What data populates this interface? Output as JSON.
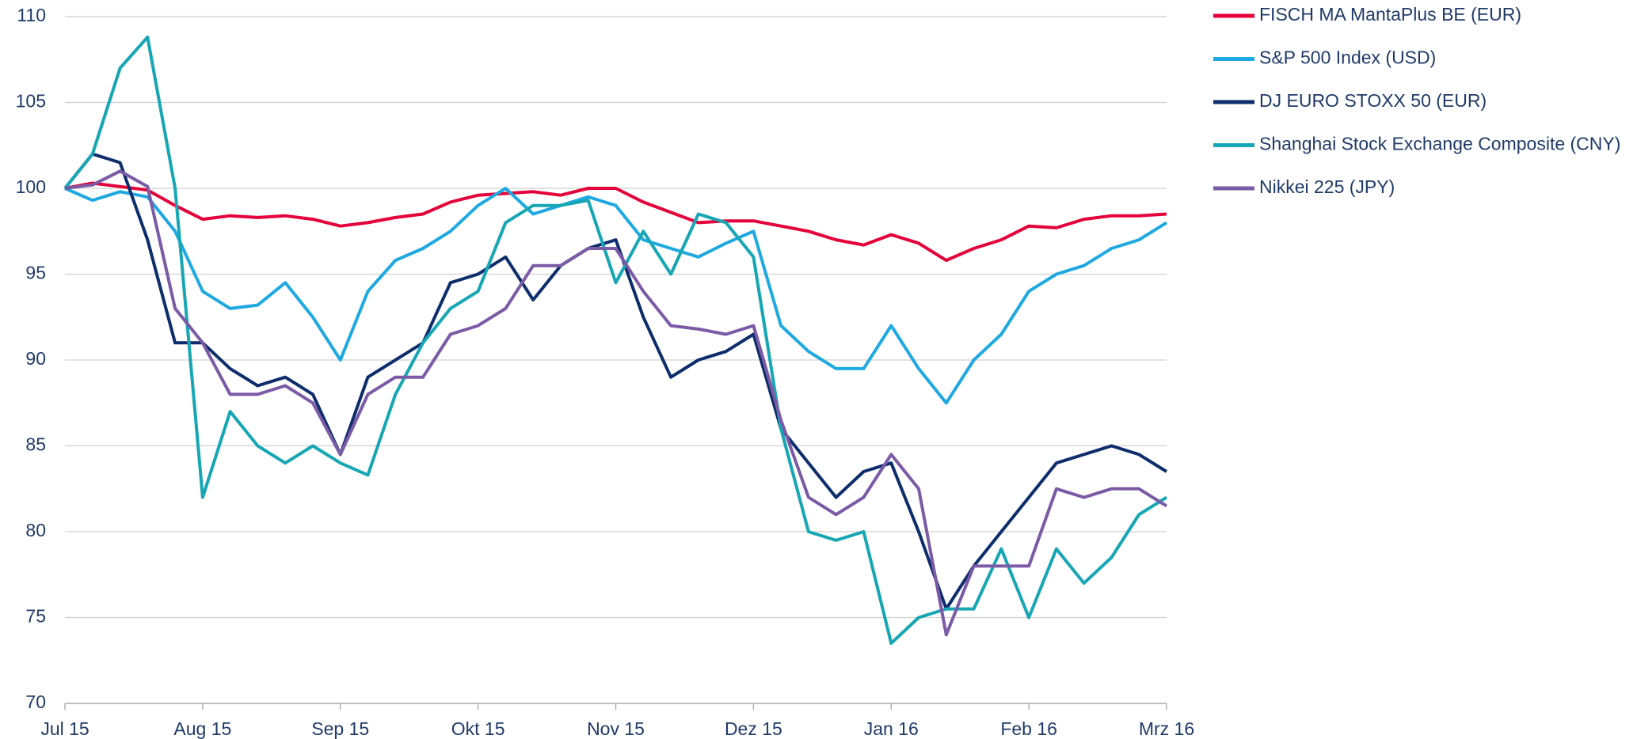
{
  "chart_data": {
    "type": "line",
    "categories": [
      "Jul 15",
      null,
      null,
      null,
      null,
      "Aug 15",
      null,
      null,
      null,
      null,
      "Sep 15",
      null,
      null,
      null,
      null,
      "Okt 15",
      null,
      null,
      null,
      null,
      "Nov 15",
      null,
      null,
      null,
      null,
      "Dez 15",
      null,
      null,
      null,
      null,
      "Jan 16",
      null,
      null,
      null,
      null,
      "Feb 16",
      null,
      null,
      null,
      null,
      "Mrz 16"
    ],
    "series": [
      {
        "name": "FISCH MA MantaPlus BE (EUR)",
        "color": "#e4003a",
        "values": [
          100,
          100.3,
          100.1,
          99.9,
          99.0,
          98.2,
          98.4,
          98.3,
          98.4,
          98.2,
          97.8,
          98.0,
          98.3,
          98.5,
          99.2,
          99.6,
          99.7,
          99.8,
          99.6,
          100.0,
          100.0,
          99.2,
          98.6,
          98.0,
          98.1,
          98.1,
          97.8,
          97.5,
          97.0,
          96.7,
          97.3,
          96.8,
          95.8,
          96.5,
          97.0,
          97.8,
          97.7,
          98.2,
          98.4,
          98.4,
          98.5
        ]
      },
      {
        "name": "S&P 500 Index (USD)",
        "color": "#1ea9e1",
        "values": [
          100,
          99.3,
          99.8,
          99.5,
          97.5,
          94.0,
          93.0,
          93.2,
          94.5,
          92.5,
          90.0,
          94.0,
          95.8,
          96.5,
          97.5,
          99.0,
          100.0,
          98.5,
          99.0,
          99.5,
          99.0,
          97.0,
          96.5,
          96.0,
          96.8,
          97.5,
          92.0,
          90.5,
          89.5,
          89.5,
          92.0,
          89.5,
          87.5,
          90.0,
          91.5,
          94.0,
          95.0,
          95.5,
          96.5,
          97.0,
          98.0
        ]
      },
      {
        "name": "DJ EURO STOXX 50 (EUR)",
        "color": "#0d2d6c",
        "values": [
          100,
          102,
          101.5,
          97.0,
          91.0,
          91.0,
          89.5,
          88.5,
          89.0,
          88.0,
          84.5,
          89.0,
          90.0,
          91.0,
          94.5,
          95.0,
          96.0,
          93.5,
          95.5,
          96.5,
          97.0,
          92.5,
          89.0,
          90.0,
          90.5,
          91.5,
          86.0,
          84.0,
          82.0,
          83.5,
          84.0,
          80.0,
          75.5,
          78.0,
          80.0,
          82.0,
          84.0,
          84.5,
          85.0,
          84.5,
          83.5
        ]
      },
      {
        "name": "Shanghai Stock Exchange Composite (CNY)",
        "color": "#17a6b4",
        "values": [
          100,
          102,
          107,
          108.8,
          100,
          82.0,
          87.0,
          85.0,
          84.0,
          85.0,
          84.0,
          83.3,
          88.0,
          91.0,
          93.0,
          94.0,
          98.0,
          99.0,
          99.0,
          99.3,
          94.5,
          97.5,
          95.0,
          98.5,
          98.0,
          96.0,
          86.0,
          80.0,
          79.5,
          80.0,
          73.5,
          75.0,
          75.5,
          75.5,
          79.0,
          75.0,
          79.0,
          77.0,
          78.5,
          81.0,
          82.0
        ]
      },
      {
        "name": "Nikkei 225 (JPY)",
        "color": "#7b5aa6",
        "values": [
          100,
          100.2,
          101,
          100.1,
          93.0,
          91.0,
          88.0,
          88.0,
          88.5,
          87.5,
          84.5,
          88.0,
          89.0,
          89.0,
          91.5,
          92.0,
          93.0,
          95.5,
          95.5,
          96.5,
          96.5,
          94.0,
          92.0,
          91.8,
          91.5,
          92.0,
          86.5,
          82.0,
          81.0,
          82.0,
          84.5,
          82.5,
          74.0,
          78.0,
          78.0,
          78.0,
          82.5,
          82.0,
          82.5,
          82.5,
          81.5
        ]
      }
    ],
    "ylim": [
      70,
      110
    ],
    "yticks": [
      70,
      75,
      80,
      85,
      90,
      95,
      100,
      105,
      110
    ],
    "grid": true,
    "legend": "right"
  }
}
